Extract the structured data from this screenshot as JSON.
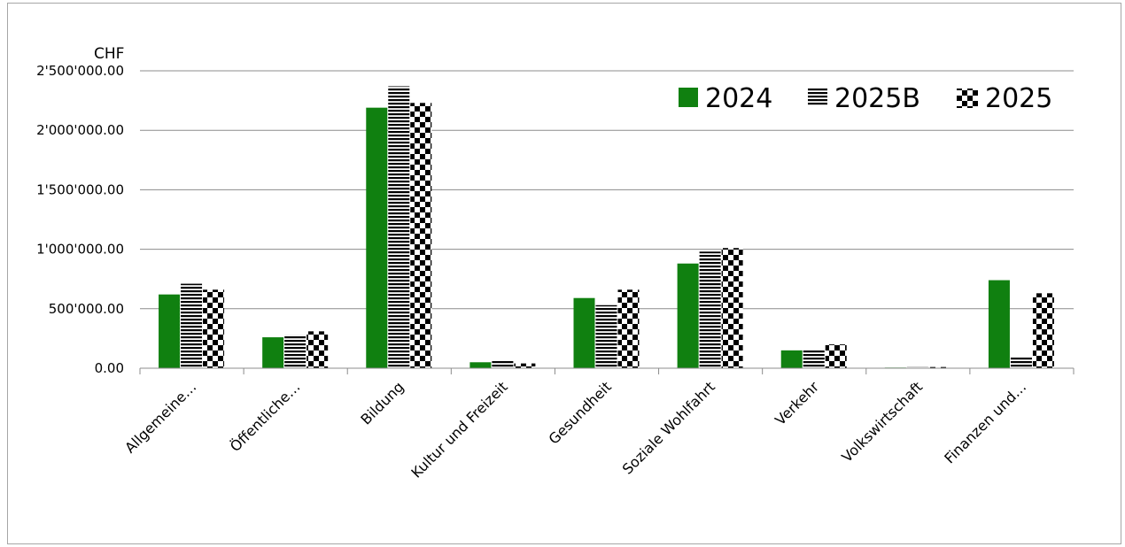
{
  "chart_data": {
    "type": "bar",
    "unit_label": "CHF",
    "categories": [
      "Allgemeine…",
      "Öffentliche…",
      "Bildung",
      "Kultur und Freizeit",
      "Gesundheit",
      "Soziale Wohlfahrt",
      "Verkehr",
      "Volkswirtschaft",
      "Finanzen und…"
    ],
    "series": [
      {
        "name": "2024",
        "color": "#108010",
        "pattern": "solid",
        "values": [
          620000,
          260000,
          2190000,
          50000,
          590000,
          880000,
          150000,
          5000,
          740000
        ]
      },
      {
        "name": "2025B",
        "color": "#000000",
        "pattern": "horizontal",
        "values": [
          710000,
          280000,
          2370000,
          60000,
          530000,
          980000,
          160000,
          15000,
          90000
        ]
      },
      {
        "name": "2025",
        "color": "#000000",
        "pattern": "checkerboard",
        "values": [
          660000,
          310000,
          2230000,
          40000,
          660000,
          1010000,
          200000,
          10000,
          630000
        ]
      }
    ],
    "yticks": [
      "0.00",
      "500'000.00",
      "1'000'000.00",
      "1'500'000.00",
      "2'000'000.00",
      "2'500'000.00"
    ],
    "ylim": [
      0,
      2500000
    ],
    "grid": true,
    "legend_position": "top-right"
  }
}
